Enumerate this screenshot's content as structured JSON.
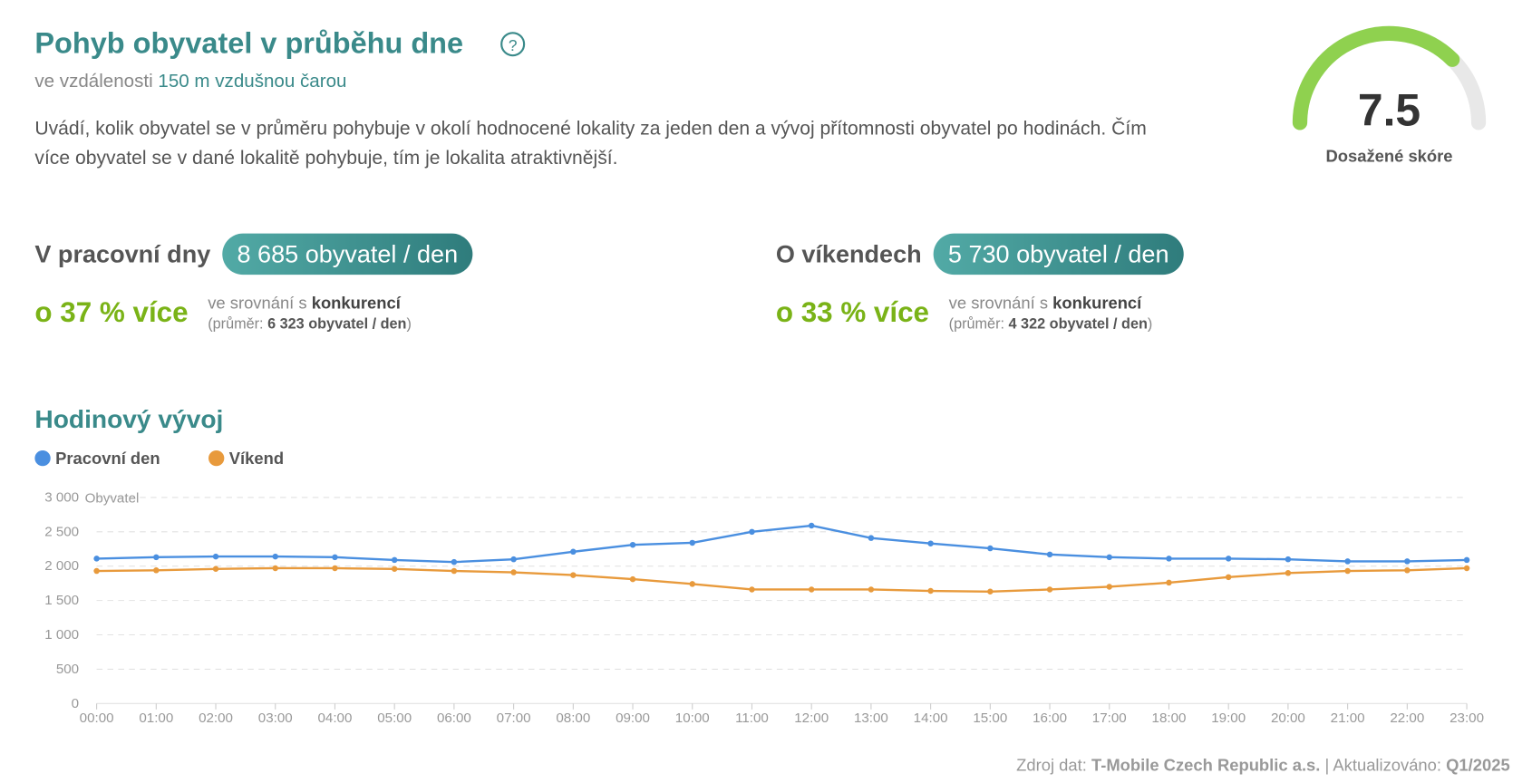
{
  "header": {
    "title": "Pohyb obyvatel v průběhu dne",
    "help_icon": "?",
    "subtitle_prefix": "ve vzdálenosti",
    "subtitle_highlight": "150 m vzdušnou čarou",
    "description": "Uvádí, kolik obyvatel se v průměru pohybuje v okolí hodnocené lokality za jeden den a vývoj přítomnosti obyvatel po hodinách. Čím více obyvatel se v dané lokalitě pohybuje, tím je lokalita atraktivnější."
  },
  "score": {
    "value": "7.5",
    "label": "Dosažené skóre"
  },
  "stats": [
    {
      "label": "V pracovní dny",
      "value": "8 685 obyvatel / den",
      "difference": "o 37 % více",
      "compare_prefix": "ve srovnání s",
      "compare_target": "konkurencí",
      "average_prefix": "(průměr:",
      "average_value": "6 323 obyvatel / den",
      "average_suffix": ")"
    },
    {
      "label": "O víkendech",
      "value": "5 730 obyvatel / den",
      "difference": "o 33 % více",
      "compare_prefix": "ve srovnání s",
      "compare_target": "konkurencí",
      "average_prefix": "(průměr:",
      "average_value": "4 322 obyvatel / den",
      "average_suffix": ")"
    }
  ],
  "chart_data": {
    "type": "line",
    "title": "Hodinový vývoj",
    "y_label": "Obyvatel",
    "categories": [
      "00:00",
      "01:00",
      "02:00",
      "03:00",
      "04:00",
      "05:00",
      "06:00",
      "07:00",
      "08:00",
      "09:00",
      "10:00",
      "11:00",
      "12:00",
      "13:00",
      "14:00",
      "15:00",
      "16:00",
      "17:00",
      "18:00",
      "19:00",
      "20:00",
      "21:00",
      "22:00",
      "23:00"
    ],
    "series": [
      {
        "name": "Pracovní den",
        "color": "#4a8fe0",
        "values": [
          2110,
          2130,
          2140,
          2140,
          2130,
          2090,
          2060,
          2100,
          2210,
          2310,
          2340,
          2500,
          2590,
          2410,
          2330,
          2260,
          2170,
          2130,
          2110,
          2110,
          2100,
          2070,
          2070,
          2090
        ]
      },
      {
        "name": "Víkend",
        "color": "#e89a3c",
        "values": [
          1930,
          1940,
          1960,
          1970,
          1970,
          1960,
          1930,
          1910,
          1870,
          1810,
          1740,
          1660,
          1660,
          1660,
          1640,
          1630,
          1660,
          1700,
          1760,
          1840,
          1900,
          1930,
          1940,
          1970
        ]
      }
    ],
    "ylim": [
      0,
      3000
    ],
    "yticks": [
      0,
      500,
      {
        "value": 1000,
        "label": "1 000"
      },
      {
        "value": 1500,
        "label": "1 500"
      },
      {
        "value": 2000,
        "label": "2 000"
      },
      {
        "value": 2500,
        "label": "2 500"
      },
      {
        "value": 3000,
        "label": "3 000"
      }
    ],
    "grid": true
  },
  "footer": {
    "source_prefix": "Zdroj dat:",
    "source": "T-Mobile Czech Republic a.s.",
    "updated_prefix": "| Aktualizováno:",
    "updated": "Q1/2025"
  }
}
